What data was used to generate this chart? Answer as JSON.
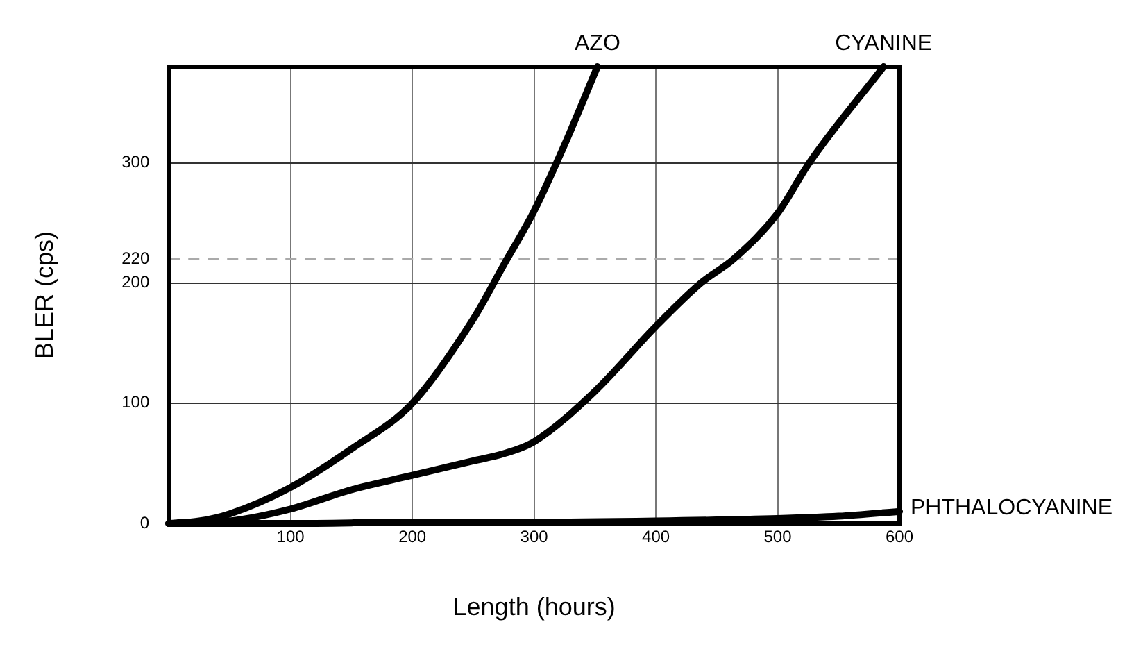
{
  "chart_data": {
    "type": "line",
    "xlabel": "Length (hours)",
    "ylabel": "BLER (cps)",
    "xlim": [
      0,
      600
    ],
    "xticks": [
      100,
      200,
      300,
      400,
      500,
      600
    ],
    "ylim": [
      0,
      380
    ],
    "yticks": [
      0,
      100,
      200,
      220,
      300
    ],
    "grid": true,
    "legend": false,
    "marker": "none",
    "line_style": "solid",
    "ref_lines": [
      {
        "axis": "y",
        "value": 220,
        "label": null,
        "color": "#aaaaaa",
        "line_style": "dashed"
      }
    ],
    "series": [
      {
        "name": "AZO",
        "color": "#000000",
        "x": [
          0,
          25,
          50,
          100,
          150,
          200,
          250,
          275,
          300,
          325,
          352
        ],
        "values": [
          0,
          2,
          8,
          30,
          62,
          100,
          170,
          215,
          260,
          315,
          380
        ]
      },
      {
        "name": "CYANINE",
        "color": "#000000",
        "x": [
          0,
          50,
          100,
          150,
          200,
          250,
          275,
          300,
          350,
          400,
          437,
          464,
          500,
          526,
          587
        ],
        "values": [
          0,
          2,
          12,
          28,
          40,
          52,
          58,
          68,
          110,
          164,
          200,
          220,
          258,
          300,
          380
        ]
      },
      {
        "name": "PHTHALOCYANINE",
        "color": "#000000",
        "x": [
          0,
          100,
          200,
          300,
          400,
          500,
          550,
          600
        ],
        "values": [
          0,
          0,
          1,
          1,
          2,
          4,
          6,
          10
        ]
      }
    ]
  }
}
